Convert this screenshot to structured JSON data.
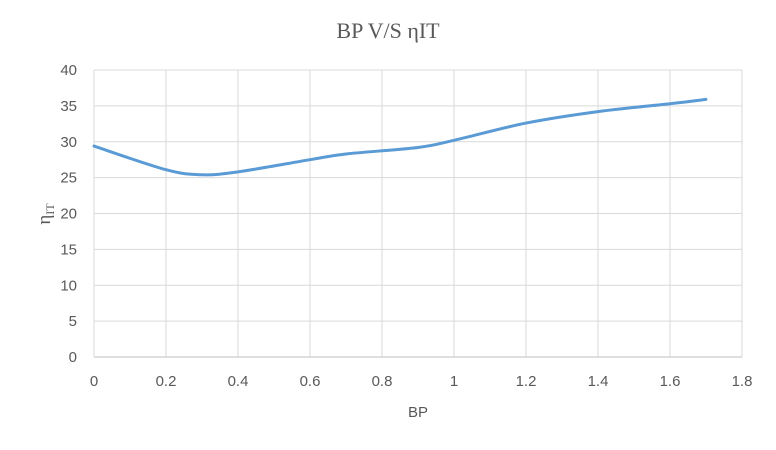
{
  "chart_data": {
    "type": "line",
    "title": "BP V/S ηIT",
    "xlabel": "BP",
    "ylabel": "η",
    "ylabel_subscript": "IT",
    "xlim": [
      0,
      1.8
    ],
    "ylim": [
      0,
      40
    ],
    "x_ticks": [
      0,
      0.2,
      0.4,
      0.6,
      0.8,
      1,
      1.2,
      1.4,
      1.6,
      1.8
    ],
    "x_tick_labels": [
      "0",
      "0.2",
      "0.4",
      "0.6",
      "0.8",
      "1",
      "1.2",
      "1.4",
      "1.6",
      "1.8"
    ],
    "y_ticks": [
      0,
      5,
      10,
      15,
      20,
      25,
      30,
      35,
      40
    ],
    "y_tick_labels": [
      "0",
      "5",
      "10",
      "15",
      "20",
      "25",
      "30",
      "35",
      "40"
    ],
    "grid": true,
    "legend": "none",
    "series": [
      {
        "color": "#5B9BD5",
        "smooth": true,
        "x": [
          0,
          0.2,
          0.3,
          0.4,
          0.6,
          0.7,
          0.9,
          1.0,
          1.2,
          1.4,
          1.6,
          1.7
        ],
        "y": [
          29.4,
          26.1,
          25.4,
          25.8,
          27.5,
          28.3,
          29.2,
          30.2,
          32.6,
          34.2,
          35.3,
          35.9
        ]
      }
    ]
  }
}
